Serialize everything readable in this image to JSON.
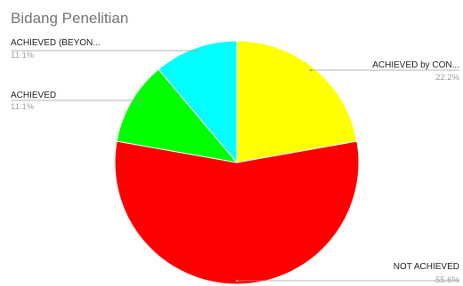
{
  "chart_data": {
    "type": "pie",
    "title": "Bidang Penelitian",
    "slices": [
      {
        "label": "ACHIEVED by CON...",
        "percent_label": "22.2%",
        "value": 22.2,
        "color": "#ffff00"
      },
      {
        "label": "NOT ACHIEVED",
        "percent_label": "55.6%",
        "value": 55.6,
        "color": "#ff0000"
      },
      {
        "label": "ACHIEVED",
        "percent_label": "11.1%",
        "value": 11.1,
        "color": "#00ff00"
      },
      {
        "label": "ACHIEVED (BEYON...",
        "percent_label": "11.1%",
        "value": 11.1,
        "color": "#00ffff"
      }
    ],
    "legend": "none"
  }
}
